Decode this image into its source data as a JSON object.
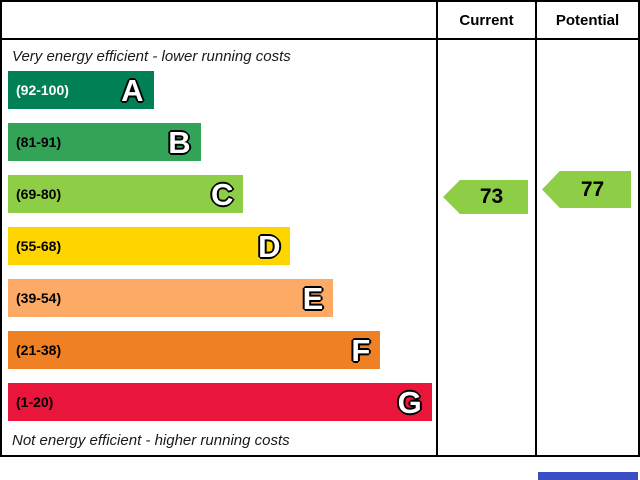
{
  "header": {
    "current": "Current",
    "potential": "Potential"
  },
  "captions": {
    "top": "Very energy efficient - lower running costs",
    "bottom": "Not energy efficient - higher running costs"
  },
  "bands": [
    {
      "letter": "A",
      "range": "(92-100)",
      "color": "#008054",
      "range_color": "#ffffff",
      "width": "34%"
    },
    {
      "letter": "B",
      "range": "(81-91)",
      "color": "#33a357",
      "range_color": "#000000",
      "width": "45%"
    },
    {
      "letter": "C",
      "range": "(69-80)",
      "color": "#8dce46",
      "range_color": "#000000",
      "width": "55%"
    },
    {
      "letter": "D",
      "range": "(55-68)",
      "color": "#ffd500",
      "range_color": "#000000",
      "width": "66%"
    },
    {
      "letter": "E",
      "range": "(39-54)",
      "color": "#fcaa65",
      "range_color": "#000000",
      "width": "76%"
    },
    {
      "letter": "F",
      "range": "(21-38)",
      "color": "#ef8023",
      "range_color": "#000000",
      "width": "87%"
    },
    {
      "letter": "G",
      "range": "(1-20)",
      "color": "#e9153b",
      "range_color": "#000000",
      "width": "99%"
    }
  ],
  "ratings": {
    "current": {
      "value": "73",
      "color": "#8dce46"
    },
    "potential": {
      "value": "77",
      "color": "#8dce46"
    }
  },
  "footer": {
    "accent_color": "#3b4fc4"
  },
  "chart_data": {
    "type": "bar",
    "title": "Energy Efficiency Rating",
    "categories": [
      "A",
      "B",
      "C",
      "D",
      "E",
      "F",
      "G"
    ],
    "ranges": [
      "(92-100)",
      "(81-91)",
      "(69-80)",
      "(55-68)",
      "(39-54)",
      "(21-38)",
      "(1-20)"
    ],
    "band_colors": [
      "#008054",
      "#33a357",
      "#8dce46",
      "#ffd500",
      "#fcaa65",
      "#ef8023",
      "#e9153b"
    ],
    "series": [
      {
        "name": "Current",
        "value": 73,
        "band": "C"
      },
      {
        "name": "Potential",
        "value": 77,
        "band": "C"
      }
    ],
    "xlabel": "",
    "ylabel": "",
    "value_range": [
      1,
      100
    ],
    "grid": false,
    "legend_position": "top-columns",
    "annotations": [
      "Very energy efficient - lower running costs",
      "Not energy efficient - higher running costs"
    ]
  }
}
